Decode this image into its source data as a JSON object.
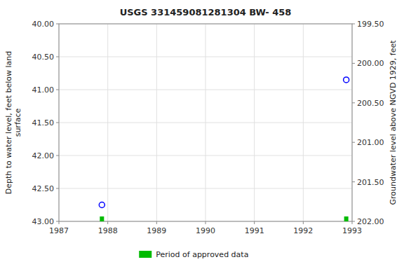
{
  "chart_data": {
    "type": "scatter",
    "title": "USGS 331459081281304 BW- 458",
    "ylabel": "Depth to water level, feet below land\nsurface",
    "y2label": "Groundwater level above NGVD 1929, feet",
    "xlim": [
      1987,
      1993
    ],
    "xticks": [
      1987,
      1988,
      1989,
      1990,
      1991,
      1992,
      1993
    ],
    "ylim": [
      43.0,
      40.0
    ],
    "yticks": [
      {
        "value": 40.0,
        "label": "40.00"
      },
      {
        "value": 40.5,
        "label": "40.50"
      },
      {
        "value": 41.0,
        "label": "41.00"
      },
      {
        "value": 41.5,
        "label": "41.50"
      },
      {
        "value": 42.0,
        "label": "42.00"
      },
      {
        "value": 42.5,
        "label": "42.50"
      },
      {
        "value": 43.0,
        "label": "43.00"
      }
    ],
    "y2lim": [
      202.0,
      199.5
    ],
    "y2ticks": [
      {
        "value": 202.0,
        "label": "202.00"
      },
      {
        "value": 201.5,
        "label": "201.50"
      },
      {
        "value": 201.0,
        "label": "201.00"
      },
      {
        "value": 200.5,
        "label": "200.50"
      },
      {
        "value": 200.0,
        "label": "200.00"
      },
      {
        "value": 199.5,
        "label": "199.50"
      }
    ],
    "grid": true,
    "legend": "bottom",
    "series": [
      {
        "type": "scatter",
        "marker": "circle",
        "color": "blue",
        "x": [
          1987.88,
          1992.88
        ],
        "values": [
          42.75,
          40.85
        ]
      },
      {
        "type": "rug",
        "name": "Period of approved data",
        "color": "#00bb00",
        "x": [
          1987.88,
          1992.88
        ]
      }
    ]
  }
}
